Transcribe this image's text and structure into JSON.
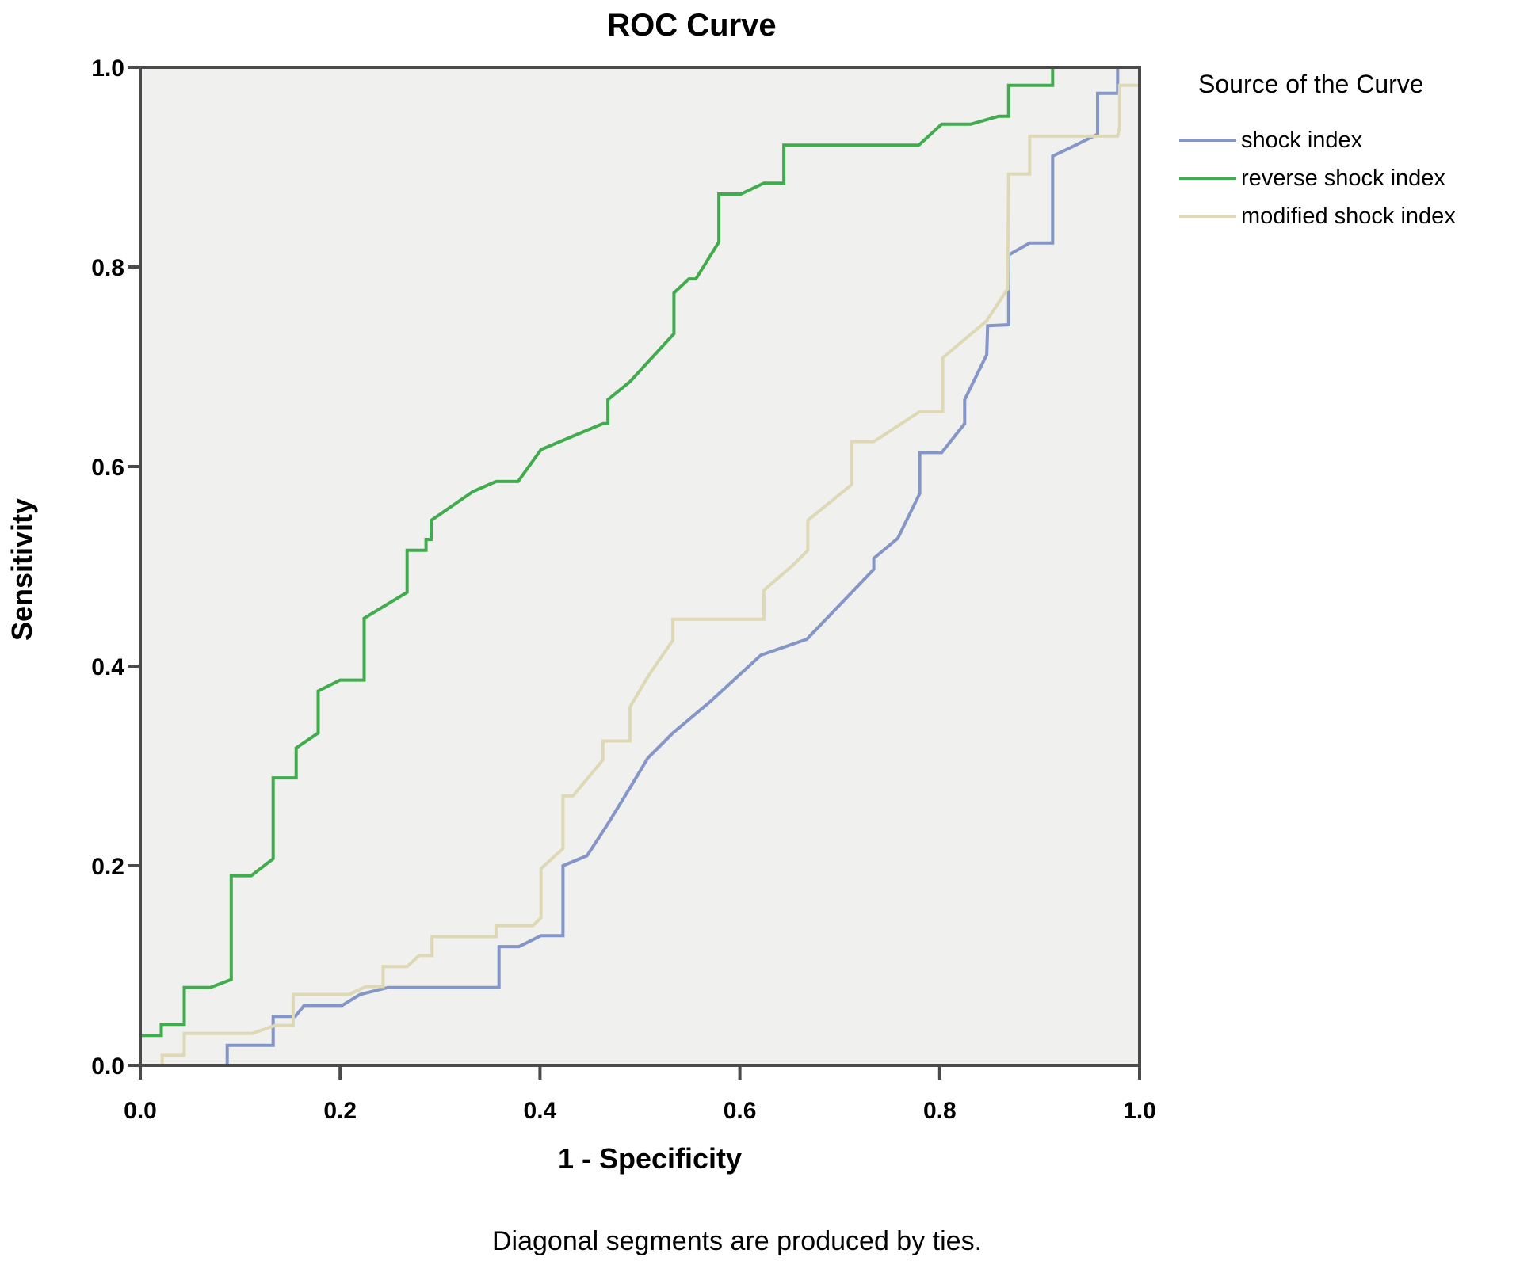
{
  "page": {
    "title": "ROC Curve",
    "footnote": "Diagonal segments are produced by ties."
  },
  "axes": {
    "xlabel": "1 - Specificity",
    "ylabel": "Sensitivity",
    "x_tick_labels": [
      "0.0",
      "0.2",
      "0.4",
      "0.6",
      "0.8",
      "1.0"
    ],
    "y_tick_labels": [
      "0.0",
      "0.2",
      "0.4",
      "0.6",
      "0.8",
      "1.0"
    ]
  },
  "legend": {
    "title": "Source of the Curve"
  },
  "chart_data": {
    "type": "line",
    "subtype": "roc-step-curves",
    "title": "ROC Curve",
    "xlabel": "1 - Specificity",
    "ylabel": "Sensitivity",
    "xlim": [
      0,
      1
    ],
    "ylim": [
      0,
      1
    ],
    "grid": false,
    "legend_position": "right",
    "plot_background": "#f0f0ee",
    "frame_color": "#4a4a4a",
    "series": [
      {
        "name": "shock index",
        "color": "#8495c8",
        "points": [
          [
            0,
            0
          ],
          [
            0.087,
            0
          ],
          [
            0.087,
            0.02
          ],
          [
            0.133,
            0.02
          ],
          [
            0.133,
            0.049
          ],
          [
            0.155,
            0.049
          ],
          [
            0.164,
            0.06
          ],
          [
            0.202,
            0.06
          ],
          [
            0.22,
            0.071
          ],
          [
            0.248,
            0.078
          ],
          [
            0.359,
            0.078
          ],
          [
            0.359,
            0.119
          ],
          [
            0.379,
            0.119
          ],
          [
            0.401,
            0.13
          ],
          [
            0.423,
            0.13
          ],
          [
            0.423,
            0.2
          ],
          [
            0.447,
            0.21
          ],
          [
            0.468,
            0.242
          ],
          [
            0.49,
            0.278
          ],
          [
            0.508,
            0.308
          ],
          [
            0.533,
            0.333
          ],
          [
            0.571,
            0.365
          ],
          [
            0.621,
            0.411
          ],
          [
            0.667,
            0.427
          ],
          [
            0.734,
            0.497
          ],
          [
            0.734,
            0.508
          ],
          [
            0.758,
            0.528
          ],
          [
            0.78,
            0.573
          ],
          [
            0.78,
            0.614
          ],
          [
            0.802,
            0.614
          ],
          [
            0.825,
            0.643
          ],
          [
            0.825,
            0.667
          ],
          [
            0.847,
            0.712
          ],
          [
            0.848,
            0.741
          ],
          [
            0.869,
            0.742
          ],
          [
            0.869,
            0.812
          ],
          [
            0.89,
            0.824
          ],
          [
            0.913,
            0.824
          ],
          [
            0.913,
            0.911
          ],
          [
            0.934,
            0.921
          ],
          [
            0.958,
            0.933
          ],
          [
            0.958,
            0.974
          ],
          [
            0.978,
            0.974
          ],
          [
            0.978,
            1
          ],
          [
            1,
            1
          ]
        ]
      },
      {
        "name": "reverse shock index",
        "color": "#41ac4d",
        "points": [
          [
            0,
            0
          ],
          [
            0,
            0.03
          ],
          [
            0.021,
            0.03
          ],
          [
            0.021,
            0.041
          ],
          [
            0.044,
            0.041
          ],
          [
            0.044,
            0.078
          ],
          [
            0.07,
            0.078
          ],
          [
            0.091,
            0.086
          ],
          [
            0.091,
            0.19
          ],
          [
            0.111,
            0.19
          ],
          [
            0.133,
            0.207
          ],
          [
            0.133,
            0.288
          ],
          [
            0.156,
            0.288
          ],
          [
            0.156,
            0.318
          ],
          [
            0.178,
            0.333
          ],
          [
            0.178,
            0.375
          ],
          [
            0.2,
            0.386
          ],
          [
            0.224,
            0.386
          ],
          [
            0.224,
            0.448
          ],
          [
            0.267,
            0.474
          ],
          [
            0.267,
            0.516
          ],
          [
            0.286,
            0.516
          ],
          [
            0.286,
            0.527
          ],
          [
            0.291,
            0.527
          ],
          [
            0.291,
            0.546
          ],
          [
            0.333,
            0.575
          ],
          [
            0.356,
            0.585
          ],
          [
            0.378,
            0.585
          ],
          [
            0.401,
            0.617
          ],
          [
            0.463,
            0.643
          ],
          [
            0.468,
            0.643
          ],
          [
            0.468,
            0.667
          ],
          [
            0.49,
            0.685
          ],
          [
            0.534,
            0.733
          ],
          [
            0.534,
            0.774
          ],
          [
            0.549,
            0.788
          ],
          [
            0.556,
            0.788
          ],
          [
            0.579,
            0.825
          ],
          [
            0.579,
            0.873
          ],
          [
            0.601,
            0.873
          ],
          [
            0.624,
            0.884
          ],
          [
            0.644,
            0.884
          ],
          [
            0.644,
            0.922
          ],
          [
            0.779,
            0.922
          ],
          [
            0.802,
            0.943
          ],
          [
            0.831,
            0.943
          ],
          [
            0.859,
            0.951
          ],
          [
            0.869,
            0.951
          ],
          [
            0.869,
            0.982
          ],
          [
            0.913,
            0.982
          ],
          [
            0.913,
            1
          ],
          [
            1,
            1
          ]
        ]
      },
      {
        "name": "modified shock index",
        "color": "#ded8b4",
        "points": [
          [
            0,
            0
          ],
          [
            0.022,
            0
          ],
          [
            0.022,
            0.01
          ],
          [
            0.044,
            0.01
          ],
          [
            0.044,
            0.032
          ],
          [
            0.112,
            0.032
          ],
          [
            0.135,
            0.04
          ],
          [
            0.153,
            0.04
          ],
          [
            0.153,
            0.071
          ],
          [
            0.209,
            0.071
          ],
          [
            0.226,
            0.079
          ],
          [
            0.243,
            0.079
          ],
          [
            0.243,
            0.099
          ],
          [
            0.267,
            0.099
          ],
          [
            0.279,
            0.11
          ],
          [
            0.292,
            0.11
          ],
          [
            0.292,
            0.129
          ],
          [
            0.356,
            0.129
          ],
          [
            0.356,
            0.14
          ],
          [
            0.393,
            0.14
          ],
          [
            0.401,
            0.148
          ],
          [
            0.401,
            0.197
          ],
          [
            0.415,
            0.21
          ],
          [
            0.423,
            0.217
          ],
          [
            0.423,
            0.27
          ],
          [
            0.433,
            0.27
          ],
          [
            0.463,
            0.306
          ],
          [
            0.463,
            0.325
          ],
          [
            0.49,
            0.325
          ],
          [
            0.49,
            0.359
          ],
          [
            0.509,
            0.391
          ],
          [
            0.533,
            0.426
          ],
          [
            0.533,
            0.447
          ],
          [
            0.624,
            0.447
          ],
          [
            0.624,
            0.476
          ],
          [
            0.653,
            0.501
          ],
          [
            0.665,
            0.513
          ],
          [
            0.668,
            0.516
          ],
          [
            0.668,
            0.546
          ],
          [
            0.712,
            0.582
          ],
          [
            0.712,
            0.625
          ],
          [
            0.734,
            0.625
          ],
          [
            0.78,
            0.655
          ],
          [
            0.803,
            0.655
          ],
          [
            0.803,
            0.709
          ],
          [
            0.847,
            0.746
          ],
          [
            0.868,
            0.778
          ],
          [
            0.869,
            0.893
          ],
          [
            0.89,
            0.893
          ],
          [
            0.89,
            0.931
          ],
          [
            0.978,
            0.931
          ],
          [
            0.98,
            0.94
          ],
          [
            0.98,
            0.982
          ],
          [
            1,
            0.982
          ],
          [
            1,
            1
          ]
        ]
      }
    ]
  }
}
